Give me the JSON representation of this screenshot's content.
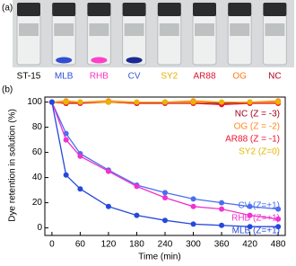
{
  "panel_a": {
    "label": "(a)",
    "vials": [
      {
        "label": "ST-15",
        "color": "#000000"
      },
      {
        "label": "MLB",
        "color": "#2a4fd8"
      },
      {
        "label": "RHB",
        "color": "#ff2fc4"
      },
      {
        "label": "CV",
        "color": "#3a5bd6"
      },
      {
        "label": "SY2",
        "color": "#e6b000"
      },
      {
        "label": "AR88",
        "color": "#e0102a"
      },
      {
        "label": "OG",
        "color": "#ff7a1a"
      },
      {
        "label": "NC",
        "color": "#b0001a"
      }
    ]
  },
  "chart_data": {
    "type": "line",
    "panel_label": "(b)",
    "x_label": "Time (min)",
    "y_label": "Dye retention in solution (%)",
    "x": [
      0,
      30,
      60,
      120,
      180,
      240,
      300,
      360,
      420,
      480
    ],
    "xlim": [
      -15,
      495
    ],
    "xticks": [
      0,
      60,
      120,
      180,
      240,
      300,
      360,
      420,
      480
    ],
    "ylim": [
      -6,
      104
    ],
    "yticks": [
      0,
      20,
      40,
      60,
      80,
      100
    ],
    "series": [
      {
        "name": "NC (Z = -3)",
        "color": "#a0001c",
        "values": [
          100,
          99,
          100,
          100,
          99,
          100,
          100,
          99,
          100,
          100
        ]
      },
      {
        "name": "OG (Z = -2)",
        "color": "#ff8a1e",
        "values": [
          100,
          101,
          100,
          101,
          100,
          100,
          101,
          100,
          100,
          101
        ]
      },
      {
        "name": "AR88 (Z = -1)",
        "color": "#ee1030",
        "values": [
          100,
          99,
          99,
          100,
          99,
          99,
          99,
          98,
          99,
          99
        ]
      },
      {
        "name": "SY2 (Z=0)",
        "color": "#e9b500",
        "values": [
          100,
          100,
          100,
          100,
          100,
          100,
          100,
          100,
          100,
          100
        ]
      },
      {
        "name": "CV (Z=+1)",
        "color": "#4a6ef0",
        "values": [
          100,
          75,
          59,
          46,
          34,
          28,
          23,
          20,
          17,
          15
        ]
      },
      {
        "name": "RHB (Z=+1)",
        "color": "#f032d0",
        "values": [
          100,
          70,
          57,
          45,
          33,
          24,
          17,
          15,
          10,
          7
        ]
      },
      {
        "name": "MLB (Z=+1)",
        "color": "#2548dc",
        "values": [
          100,
          42,
          31,
          17,
          10,
          6,
          3,
          2,
          1,
          1
        ]
      }
    ]
  }
}
